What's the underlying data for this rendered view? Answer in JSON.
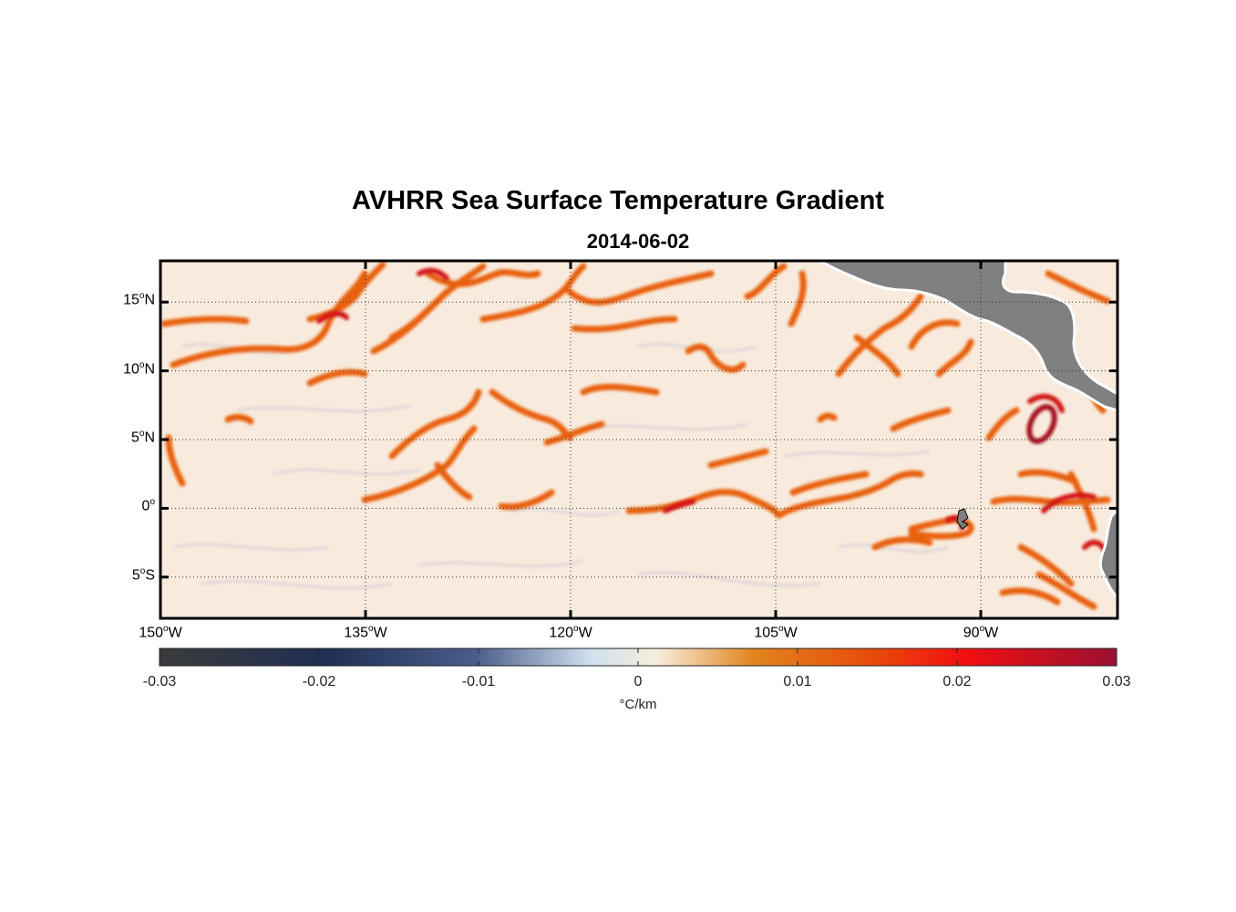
{
  "title": "AVHRR Sea Surface Temperature Gradient",
  "subtitle": "2014-06-02",
  "axes": {
    "lon_range": [
      -150,
      -80
    ],
    "lat_range": [
      -8,
      18
    ],
    "lat_ticks": [
      {
        "value": 15,
        "deg": "15",
        "hemi": "N"
      },
      {
        "value": 10,
        "deg": "10",
        "hemi": "N"
      },
      {
        "value": 5,
        "deg": "5",
        "hemi": "N"
      },
      {
        "value": 0,
        "deg": "0",
        "hemi": ""
      },
      {
        "value": -5,
        "deg": "5",
        "hemi": "S"
      }
    ],
    "lon_ticks": [
      {
        "value": -150,
        "deg": "150",
        "hemi": "W"
      },
      {
        "value": -135,
        "deg": "135",
        "hemi": "W"
      },
      {
        "value": -120,
        "deg": "120",
        "hemi": "W"
      },
      {
        "value": -105,
        "deg": "105",
        "hemi": "W"
      },
      {
        "value": -90,
        "deg": "90",
        "hemi": "W"
      }
    ],
    "grid": "dotted"
  },
  "colorbar": {
    "range": [
      -0.03,
      0.03
    ],
    "ticks": [
      "-0.03",
      "-0.02",
      "-0.01",
      "0",
      "0.01",
      "0.02",
      "0.03"
    ],
    "unit": "°C/km",
    "stops": [
      "#3b3b3b",
      "#1f2f52",
      "#4a5c8a",
      "#cfe0ee",
      "#f7eedd",
      "#e2851e",
      "#e8480a",
      "#f21010",
      "#9a1032"
    ]
  },
  "colors": {
    "land": "#808080",
    "background_ocean": "#f8ebdd",
    "front": "#e45a12",
    "strong_front": "#c4101a"
  }
}
